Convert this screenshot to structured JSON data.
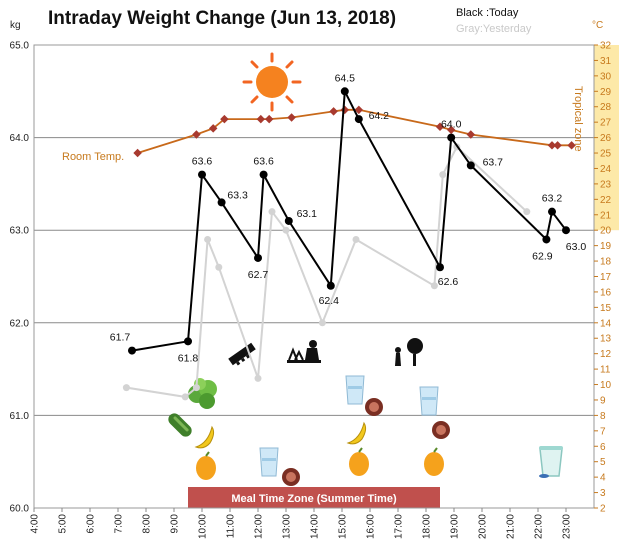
{
  "chart_data": {
    "type": "line",
    "title": "Intraday Weight Change (Jun 13, 2018)",
    "left_unit": "kg",
    "right_unit": "°C",
    "legend": {
      "today": "Black :Today",
      "yesterday": "Gray:Yesterday"
    },
    "left_axis": {
      "min": 60.0,
      "max": 65.0,
      "ticks": [
        "60.0",
        "61.0",
        "62.0",
        "63.0",
        "64.0",
        "65.0"
      ]
    },
    "right_axis": {
      "min": 2,
      "max": 32,
      "ticks": [
        "2",
        "3",
        "4",
        "5",
        "6",
        "7",
        "8",
        "9",
        "10",
        "11",
        "12",
        "13",
        "14",
        "15",
        "16",
        "17",
        "18",
        "19",
        "20",
        "21",
        "22",
        "23",
        "24",
        "25",
        "26",
        "27",
        "28",
        "29",
        "30",
        "31",
        "32"
      ]
    },
    "x_axis": {
      "min": 4,
      "max": 24,
      "ticks": [
        "4:00",
        "5:00",
        "6:00",
        "7:00",
        "8:00",
        "9:00",
        "10:00",
        "11:00",
        "12:00",
        "13:00",
        "14:00",
        "15:00",
        "16:00",
        "17:00",
        "18:00",
        "19:00",
        "20:00",
        "21:00",
        "22:00",
        "23:00"
      ]
    },
    "tropical_zone_label": "Tropical zone",
    "tropical_zone_range": [
      20,
      32
    ],
    "room_temp_label": "Room Temp.",
    "meal_zone_label": "Meal Time Zone (Summer Time)",
    "meal_zone_range": [
      9.5,
      18.5
    ],
    "series": [
      {
        "name": "Today",
        "color": "#000000",
        "points": [
          {
            "x": 7.5,
            "y": 61.7,
            "label": "61.7"
          },
          {
            "x": 9.5,
            "y": 61.8,
            "label": "61.8"
          },
          {
            "x": 10.0,
            "y": 63.6,
            "label": "63.6"
          },
          {
            "x": 10.7,
            "y": 63.3,
            "label": "63.3"
          },
          {
            "x": 12.0,
            "y": 62.7,
            "label": "62.7"
          },
          {
            "x": 12.2,
            "y": 63.6,
            "label": "63.6"
          },
          {
            "x": 13.1,
            "y": 63.1,
            "label": "63.1"
          },
          {
            "x": 14.6,
            "y": 62.4,
            "label": "62.4"
          },
          {
            "x": 15.1,
            "y": 64.5,
            "label": "64.5"
          },
          {
            "x": 15.6,
            "y": 64.2,
            "label": "64.2"
          },
          {
            "x": 18.5,
            "y": 62.6,
            "label": "62.6"
          },
          {
            "x": 18.9,
            "y": 64.0,
            "label": "64.0"
          },
          {
            "x": 19.6,
            "y": 63.7,
            "label": "63.7"
          },
          {
            "x": 22.3,
            "y": 62.9,
            "label": "62.9"
          },
          {
            "x": 22.5,
            "y": 63.2,
            "label": "63.2"
          },
          {
            "x": 23.0,
            "y": 63.0,
            "label": "63.0"
          }
        ]
      },
      {
        "color": "#d3d3d3",
        "points": [
          {
            "x": 7.3,
            "y": 61.3
          },
          {
            "x": 9.4,
            "y": 61.2
          },
          {
            "x": 9.8,
            "y": 61.3
          },
          {
            "x": 10.2,
            "y": 62.9
          },
          {
            "x": 10.6,
            "y": 62.6
          },
          {
            "x": 12.0,
            "y": 61.4
          },
          {
            "x": 12.5,
            "y": 63.2
          },
          {
            "x": 13.0,
            "y": 63.0
          },
          {
            "x": 14.3,
            "y": 62.0
          },
          {
            "x": 15.5,
            "y": 62.9
          },
          {
            "x": 18.3,
            "y": 62.4
          },
          {
            "x": 18.6,
            "y": 63.6
          },
          {
            "x": 19.1,
            "y": 63.9
          },
          {
            "x": 21.6,
            "y": 63.2
          }
        ]
      },
      {
        "name": "Room Temp.",
        "axis": "right",
        "color": "#c8691a",
        "points": [
          {
            "x": 7.7,
            "y": 25.0
          },
          {
            "x": 9.8,
            "y": 26.2
          },
          {
            "x": 10.4,
            "y": 26.6
          },
          {
            "x": 10.8,
            "y": 27.2
          },
          {
            "x": 12.1,
            "y": 27.2
          },
          {
            "x": 12.4,
            "y": 27.2
          },
          {
            "x": 13.2,
            "y": 27.3
          },
          {
            "x": 14.7,
            "y": 27.7
          },
          {
            "x": 15.1,
            "y": 27.8
          },
          {
            "x": 15.6,
            "y": 27.8
          },
          {
            "x": 18.5,
            "y": 26.7
          },
          {
            "x": 18.9,
            "y": 26.5
          },
          {
            "x": 19.6,
            "y": 26.2
          },
          {
            "x": 22.5,
            "y": 25.5
          },
          {
            "x": 22.7,
            "y": 25.5
          },
          {
            "x": 23.2,
            "y": 25.5
          }
        ]
      }
    ],
    "icons": [
      "sun-icon",
      "lettuce-icon",
      "cucumber-icon",
      "banana-icon",
      "orange-icon",
      "water-glass-icon",
      "sausage-icon",
      "saw-icon",
      "gardening-icon",
      "tree-trimming-icon",
      "yogurt-cup-icon"
    ]
  }
}
